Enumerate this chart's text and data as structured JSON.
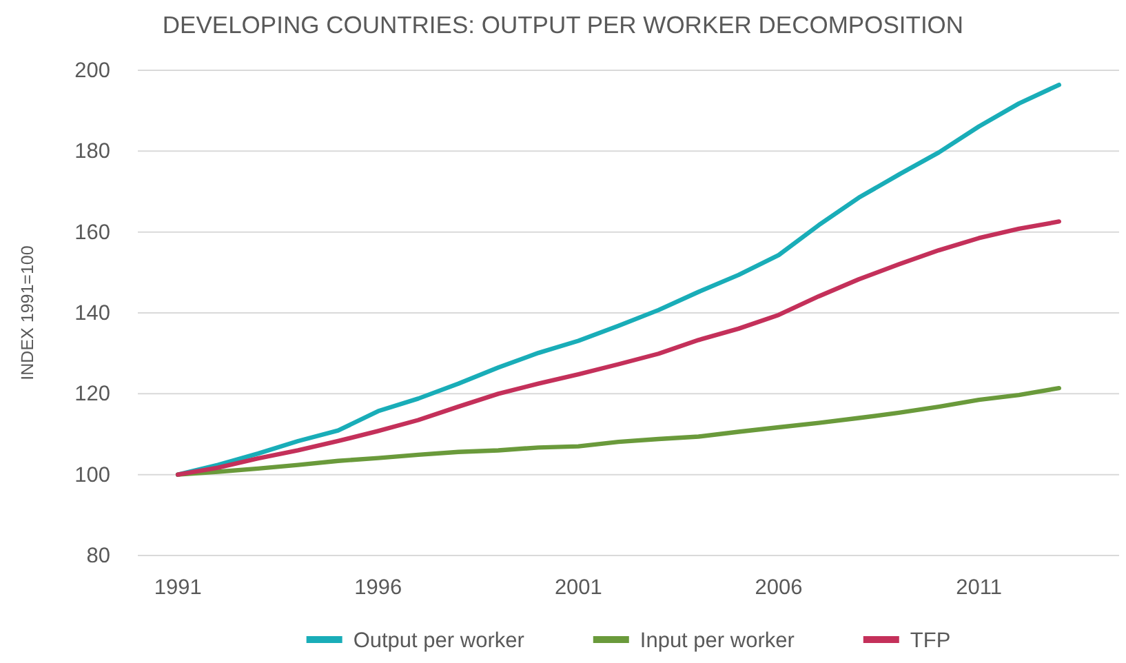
{
  "chart_data": {
    "type": "line",
    "title": "DEVELOPING COUNTRIES: OUTPUT PER WORKER DECOMPOSITION",
    "ylabel": "INDEX 1991=100",
    "x": [
      1991,
      1992,
      1993,
      1994,
      1995,
      1996,
      1997,
      1998,
      1999,
      2000,
      2001,
      2002,
      2003,
      2004,
      2005,
      2006,
      2007,
      2008,
      2009,
      2010,
      2011,
      2012,
      2013
    ],
    "xlim": [
      1990,
      2014.5
    ],
    "xticks": [
      1991,
      1996,
      2001,
      2006,
      2011
    ],
    "ylim": [
      80,
      200
    ],
    "yticks": [
      80,
      100,
      120,
      140,
      160,
      180,
      200
    ],
    "grid": "y",
    "legend": "bottom",
    "series": [
      {
        "name": "Output per worker",
        "color": "#19adb8",
        "values": [
          100,
          102.4,
          105.2,
          108.3,
          110.9,
          115.7,
          118.8,
          122.5,
          126.5,
          130.1,
          133.1,
          136.8,
          140.7,
          145.2,
          149.4,
          154.3,
          161.7,
          168.5,
          174.2,
          179.7,
          186.1,
          191.8,
          196.4
        ]
      },
      {
        "name": "Input per worker",
        "color": "#6a9a3b",
        "values": [
          100,
          100.7,
          101.5,
          102.4,
          103.4,
          104.1,
          104.9,
          105.6,
          106,
          106.7,
          107,
          108.1,
          108.8,
          109.4,
          110.6,
          111.7,
          112.8,
          114,
          115.3,
          116.8,
          118.5,
          119.7,
          121.4
        ]
      },
      {
        "name": "TFP",
        "color": "#c4305a",
        "values": [
          100,
          101.7,
          104,
          106,
          108.3,
          110.8,
          113.5,
          116.8,
          120,
          122.5,
          124.8,
          127.3,
          129.9,
          133.3,
          136.1,
          139.5,
          144.1,
          148.3,
          152,
          155.5,
          158.5,
          160.8,
          162.6
        ]
      }
    ]
  }
}
